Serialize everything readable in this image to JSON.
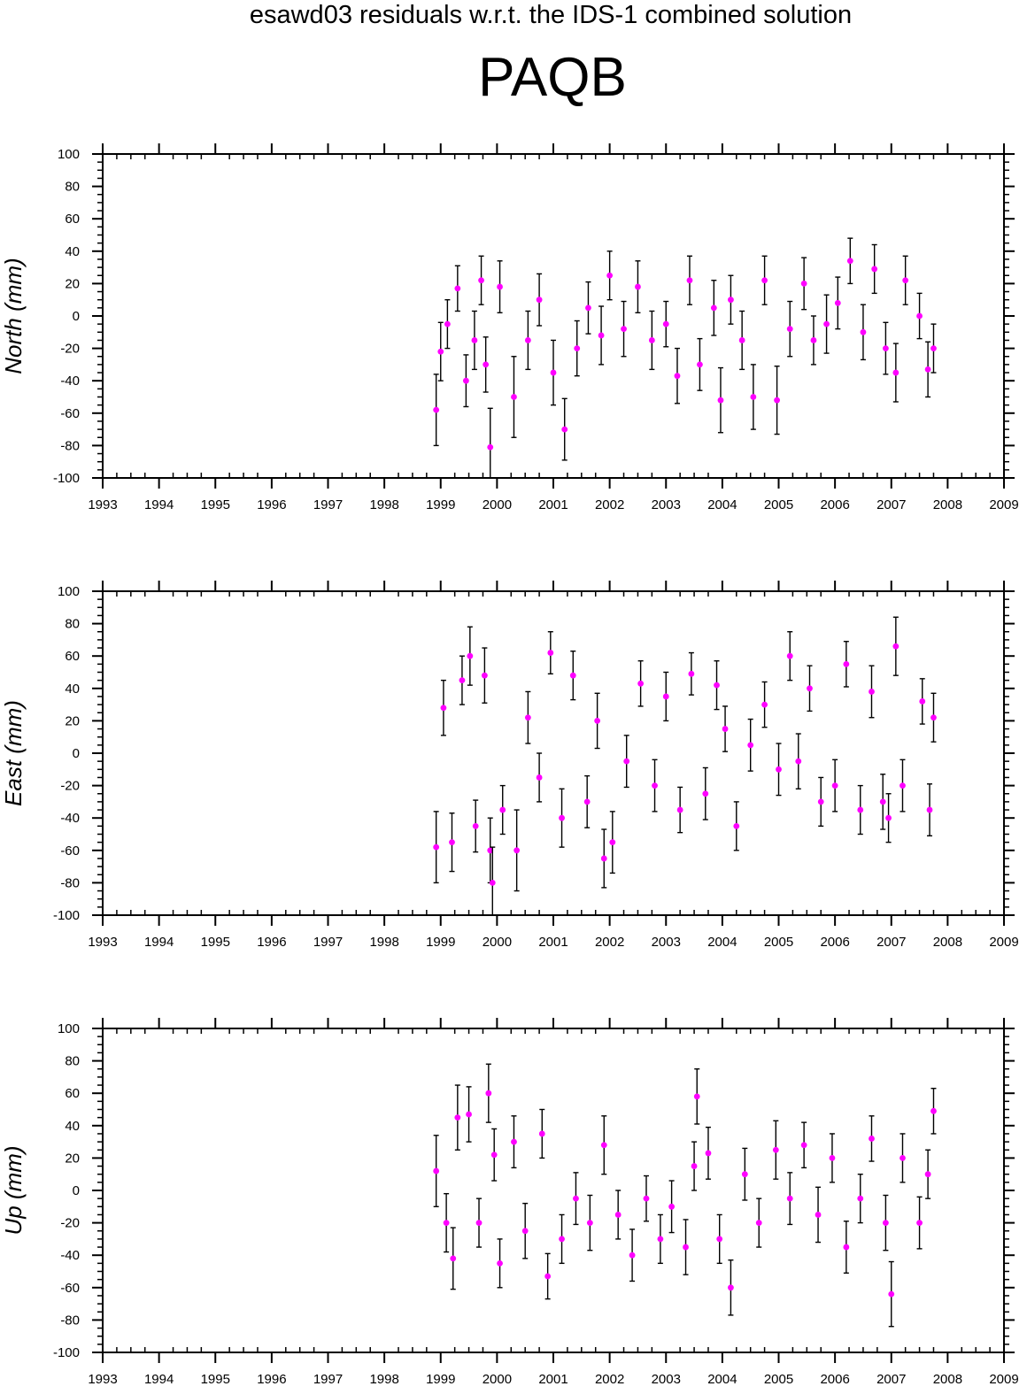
{
  "figure": {
    "suptitle": "esawd03 residuals w.r.t. the IDS-1 combined solution",
    "title": "PAQB"
  },
  "style": {
    "marker_color": "#ff00ff",
    "errorbar_color": "#000000",
    "axis_color": "#000000"
  },
  "chart_data": [
    {
      "type": "scatter",
      "panel": "north",
      "ylabel": "North (mm)",
      "xlim": [
        1993,
        2009
      ],
      "ylim": [
        -100,
        100
      ],
      "xticks": [
        "1993",
        "1994",
        "1995",
        "1996",
        "1997",
        "1998",
        "1999",
        "2000",
        "2001",
        "2002",
        "2003",
        "2004",
        "2005",
        "2006",
        "2007",
        "2008",
        "2009"
      ],
      "yticks": [
        "100",
        "80",
        "60",
        "40",
        "20",
        "0",
        "-20",
        "-40",
        "-60",
        "-80",
        "-100"
      ],
      "grid": false,
      "series": [
        {
          "x": [
            1998.92,
            1999.0,
            1999.12,
            1999.3,
            1999.45,
            1999.6,
            1999.72,
            1999.8,
            1999.88,
            2000.05,
            2000.3,
            2000.55,
            2000.75,
            2001.0,
            2001.2,
            2001.42,
            2001.62,
            2001.85,
            2002.0,
            2002.25,
            2002.5,
            2002.75,
            2003.0,
            2003.2,
            2003.42,
            2003.6,
            2003.85,
            2003.97,
            2004.15,
            2004.35,
            2004.55,
            2004.75,
            2004.97,
            2005.2,
            2005.45,
            2005.62,
            2005.85,
            2006.05,
            2006.27,
            2006.5,
            2006.7,
            2006.9,
            2007.08,
            2007.25,
            2007.5,
            2007.65,
            2007.75
          ],
          "y": [
            -58,
            -22,
            -5,
            17,
            -40,
            -15,
            22,
            -30,
            -81,
            18,
            -50,
            -15,
            10,
            -35,
            -70,
            -20,
            5,
            -12,
            25,
            -8,
            18,
            -15,
            -5,
            -37,
            22,
            -30,
            5,
            -52,
            10,
            -15,
            -50,
            22,
            -52,
            -8,
            20,
            -15,
            -5,
            8,
            34,
            -10,
            29,
            -20,
            -35,
            22,
            0,
            -33,
            -20
          ],
          "err": [
            22,
            18,
            15,
            14,
            16,
            18,
            15,
            17,
            24,
            16,
            25,
            18,
            16,
            20,
            19,
            17,
            16,
            18,
            15,
            17,
            16,
            18,
            14,
            17,
            15,
            16,
            17,
            20,
            15,
            18,
            20,
            15,
            21,
            17,
            16,
            15,
            18,
            16,
            14,
            17,
            15,
            16,
            18,
            15,
            14,
            17,
            15
          ]
        }
      ]
    },
    {
      "type": "scatter",
      "panel": "east",
      "ylabel": "East (mm)",
      "xlim": [
        1993,
        2009
      ],
      "ylim": [
        -100,
        100
      ],
      "xticks": [
        "1993",
        "1994",
        "1995",
        "1996",
        "1997",
        "1998",
        "1999",
        "2000",
        "2001",
        "2002",
        "2003",
        "2004",
        "2005",
        "2006",
        "2007",
        "2008",
        "2009"
      ],
      "yticks": [
        "100",
        "80",
        "60",
        "40",
        "20",
        "0",
        "-20",
        "-40",
        "-60",
        "-80",
        "-100"
      ],
      "grid": false,
      "series": [
        {
          "x": [
            1998.92,
            1999.05,
            1999.2,
            1999.38,
            1999.52,
            1999.62,
            1999.78,
            1999.88,
            1999.92,
            2000.1,
            2000.35,
            2000.55,
            2000.75,
            2000.95,
            2001.15,
            2001.35,
            2001.6,
            2001.78,
            2001.9,
            2002.05,
            2002.3,
            2002.55,
            2002.8,
            2003.0,
            2003.25,
            2003.45,
            2003.7,
            2003.9,
            2004.05,
            2004.25,
            2004.5,
            2004.75,
            2005.0,
            2005.2,
            2005.35,
            2005.55,
            2005.75,
            2006.0,
            2006.2,
            2006.45,
            2006.65,
            2006.85,
            2006.95,
            2007.08,
            2007.2,
            2007.55,
            2007.68,
            2007.75
          ],
          "y": [
            -58,
            28,
            -55,
            45,
            60,
            -45,
            48,
            -60,
            -80,
            -35,
            -60,
            22,
            -15,
            62,
            -40,
            48,
            -30,
            20,
            -65,
            -55,
            -5,
            43,
            -20,
            35,
            -35,
            49,
            -25,
            42,
            15,
            -45,
            5,
            30,
            -10,
            60,
            -5,
            40,
            -30,
            -20,
            55,
            -35,
            38,
            -30,
            -40,
            66,
            -20,
            32,
            -35,
            22
          ],
          "err": [
            22,
            17,
            18,
            15,
            18,
            16,
            17,
            20,
            22,
            15,
            25,
            16,
            15,
            13,
            18,
            15,
            16,
            17,
            18,
            19,
            16,
            14,
            16,
            15,
            14,
            13,
            16,
            15,
            14,
            15,
            16,
            14,
            16,
            15,
            17,
            14,
            15,
            16,
            14,
            15,
            16,
            17,
            15,
            18,
            16,
            14,
            16,
            15
          ]
        }
      ]
    },
    {
      "type": "scatter",
      "panel": "up",
      "ylabel": "Up (mm)",
      "xlim": [
        1993,
        2009
      ],
      "ylim": [
        -100,
        100
      ],
      "xticks": [
        "1993",
        "1994",
        "1995",
        "1996",
        "1997",
        "1998",
        "1999",
        "2000",
        "2001",
        "2002",
        "2003",
        "2004",
        "2005",
        "2006",
        "2007",
        "2008",
        "2009"
      ],
      "yticks": [
        "100",
        "80",
        "60",
        "40",
        "20",
        "0",
        "-20",
        "-40",
        "-60",
        "-80",
        "-100"
      ],
      "grid": false,
      "series": [
        {
          "x": [
            1998.92,
            1999.1,
            1999.22,
            1999.3,
            1999.5,
            1999.68,
            1999.85,
            1999.95,
            2000.05,
            2000.3,
            2000.5,
            2000.8,
            2000.9,
            2001.15,
            2001.4,
            2001.65,
            2001.9,
            2002.15,
            2002.4,
            2002.65,
            2002.9,
            2003.1,
            2003.35,
            2003.5,
            2003.55,
            2003.75,
            2003.95,
            2004.15,
            2004.4,
            2004.65,
            2004.95,
            2005.2,
            2005.45,
            2005.7,
            2005.95,
            2006.2,
            2006.45,
            2006.65,
            2006.9,
            2007.0,
            2007.2,
            2007.5,
            2007.65,
            2007.75
          ],
          "y": [
            12,
            -20,
            -42,
            45,
            47,
            -20,
            60,
            22,
            -45,
            30,
            -25,
            35,
            -53,
            -30,
            -5,
            -20,
            28,
            -15,
            -40,
            -5,
            -30,
            -10,
            -35,
            15,
            58,
            23,
            -30,
            -60,
            10,
            -20,
            25,
            -5,
            28,
            -15,
            20,
            -35,
            -5,
            32,
            -20,
            -64,
            20,
            -20,
            10,
            49
          ],
          "err": [
            22,
            18,
            19,
            20,
            17,
            15,
            18,
            16,
            15,
            16,
            17,
            15,
            14,
            15,
            16,
            17,
            18,
            15,
            16,
            14,
            15,
            16,
            17,
            15,
            17,
            16,
            15,
            17,
            16,
            15,
            18,
            16,
            14,
            17,
            15,
            16,
            15,
            14,
            17,
            20,
            15,
            16,
            15,
            14
          ]
        }
      ]
    }
  ]
}
